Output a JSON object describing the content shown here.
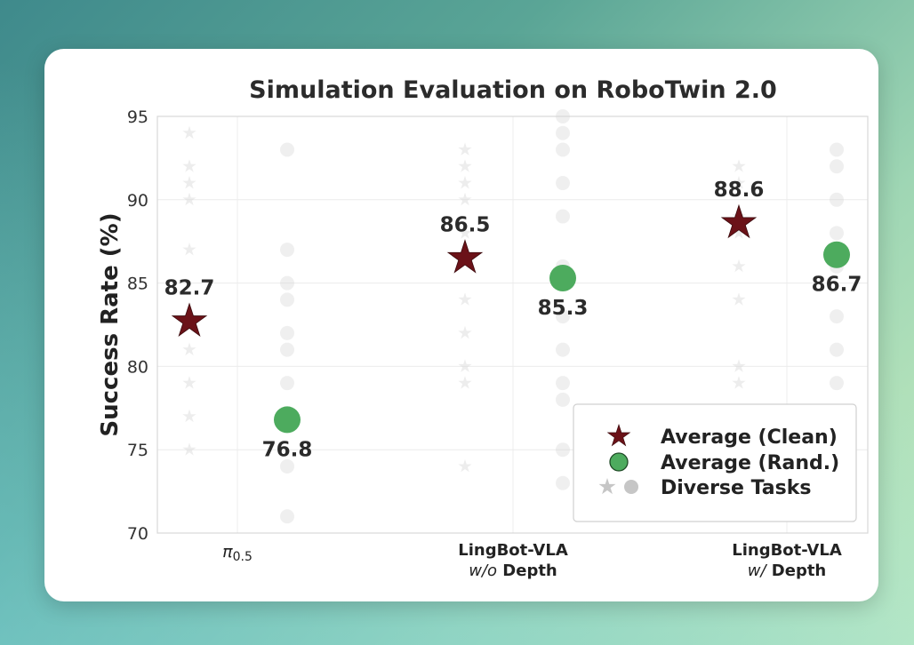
{
  "chart_data": {
    "type": "scatter",
    "title": "Simulation Evaluation on RoboTwin 2.0",
    "xlabel": "",
    "ylabel": "Success Rate (%)",
    "ylim": [
      70,
      95
    ],
    "yticks": [
      "70",
      "75",
      "80",
      "85",
      "90",
      "95"
    ],
    "grid": true,
    "categories": [
      {
        "main": "π",
        "sub": "0.5",
        "line2_italic": "",
        "line2_bold": ""
      },
      {
        "main": "LingBot-VLA",
        "sub": "",
        "line2_italic": "w/o",
        "line2_bold": " Depth"
      },
      {
        "main": "LingBot-VLA",
        "sub": "",
        "line2_italic": "w/",
        "line2_bold": " Depth"
      }
    ],
    "series": [
      {
        "name": "Average (Clean)",
        "marker": "star",
        "color": "#6b1218",
        "values": [
          82.7,
          86.5,
          88.6
        ],
        "labels": [
          "82.7",
          "86.5",
          "88.6"
        ]
      },
      {
        "name": "Average (Rand.)",
        "marker": "circle",
        "color": "#4dab5e",
        "values": [
          76.8,
          85.3,
          86.7
        ],
        "labels": [
          "76.8",
          "85.3",
          "86.7"
        ]
      }
    ],
    "background_tasks": {
      "clean": [
        [
          94,
          92,
          91,
          90,
          87,
          83,
          81,
          79,
          77,
          75
        ],
        [
          93,
          92,
          91,
          90,
          88,
          84,
          82,
          80,
          79,
          74
        ],
        [
          92,
          91,
          89,
          88,
          86,
          84,
          80,
          79
        ]
      ],
      "rand": [
        [
          93,
          87,
          85,
          84,
          82,
          81,
          79,
          77,
          74,
          71
        ],
        [
          95,
          94,
          93,
          91,
          89,
          86,
          83,
          81,
          79,
          78,
          75,
          73
        ],
        [
          93,
          92,
          90,
          88,
          86,
          83,
          81,
          79
        ]
      ]
    },
    "legend": {
      "position": "bottom-right",
      "entries": [
        "Average (Clean)",
        "Average (Rand.)",
        "Diverse Tasks"
      ]
    }
  }
}
